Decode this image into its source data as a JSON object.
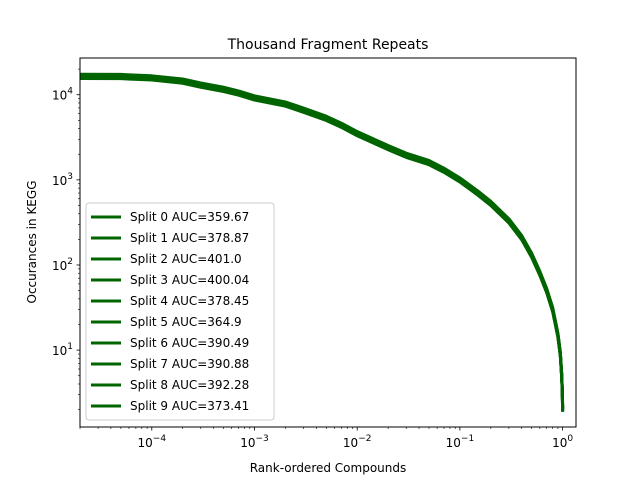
{
  "chart_data": {
    "type": "line",
    "title": "Thousand Fragment Repeats",
    "xlabel": "Rank-ordered Compounds",
    "ylabel": "Occurances in KEGG",
    "xscale": "log",
    "yscale": "log",
    "xlim": [
      2e-05,
      1.35
    ],
    "ylim": [
      1.25,
      27000
    ],
    "grid": false,
    "legend_position": "lower-left",
    "line_color": "#006400",
    "x_ticks": [
      {
        "value": 0.0001,
        "base": "10",
        "exp": "−4"
      },
      {
        "value": 0.001,
        "base": "10",
        "exp": "−3"
      },
      {
        "value": 0.01,
        "base": "10",
        "exp": "−2"
      },
      {
        "value": 0.1,
        "base": "10",
        "exp": "−1"
      },
      {
        "value": 1,
        "base": "10",
        "exp": "0"
      }
    ],
    "y_ticks": [
      {
        "value": 10,
        "base": "10",
        "exp": "1"
      },
      {
        "value": 100,
        "base": "10",
        "exp": "2"
      },
      {
        "value": 1000,
        "base": "10",
        "exp": "3"
      },
      {
        "value": 10000,
        "base": "10",
        "exp": "4"
      }
    ],
    "curve": {
      "x": [
        2e-05,
        5e-05,
        0.0001,
        0.0002,
        0.0003,
        0.0005,
        0.0007,
        0.001,
        0.002,
        0.003,
        0.005,
        0.007,
        0.01,
        0.02,
        0.03,
        0.05,
        0.07,
        0.1,
        0.15,
        0.2,
        0.3,
        0.4,
        0.5,
        0.6,
        0.7,
        0.8,
        0.9,
        0.95,
        0.98,
        0.995,
        1.0
      ],
      "y": [
        16500,
        16400,
        15800,
        14500,
        13000,
        11600,
        10500,
        9200,
        7800,
        6600,
        5300,
        4400,
        3500,
        2400,
        1950,
        1600,
        1300,
        1000,
        700,
        530,
        330,
        210,
        130,
        80,
        50,
        30,
        15,
        9,
        5,
        3,
        2
      ]
    },
    "series": [
      {
        "name": "Split 0 AUC=359.67"
      },
      {
        "name": "Split 1 AUC=378.87"
      },
      {
        "name": "Split 2 AUC=401.0"
      },
      {
        "name": "Split 3 AUC=400.04"
      },
      {
        "name": "Split 4 AUC=378.45"
      },
      {
        "name": "Split 5 AUC=364.9"
      },
      {
        "name": "Split 6 AUC=390.49"
      },
      {
        "name": "Split 7 AUC=390.88"
      },
      {
        "name": "Split 8 AUC=392.28"
      },
      {
        "name": "Split 9 AUC=373.41"
      }
    ]
  }
}
